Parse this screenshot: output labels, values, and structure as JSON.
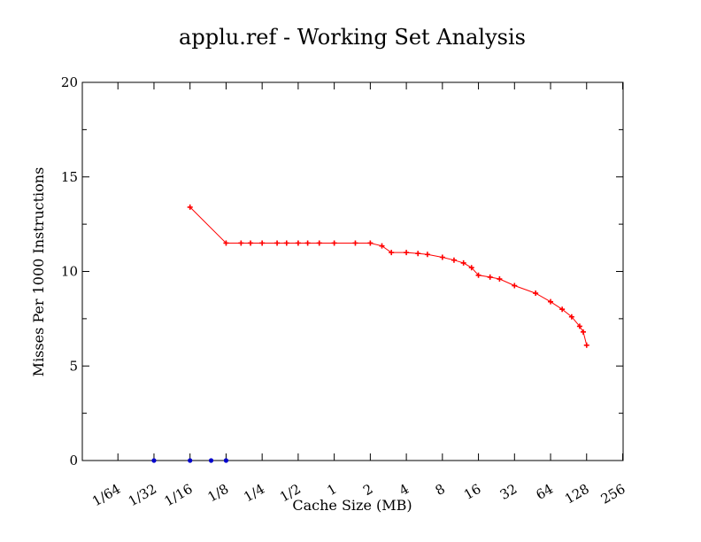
{
  "chart_data": {
    "type": "scatter",
    "title": "applu.ref - Working Set Analysis",
    "xlabel": "Cache Size (MB)",
    "ylabel": "Misses Per 1000 Instructions",
    "x_scale": "log2",
    "xlim": [
      "1/64",
      "256"
    ],
    "ylim": [
      0,
      20
    ],
    "x_ticks": [
      "1/64",
      "1/32",
      "1/16",
      "1/8",
      "1/4",
      "1/2",
      "1",
      "2",
      "4",
      "8",
      "16",
      "32",
      "64",
      "128",
      "256"
    ],
    "y_ticks": [
      "0",
      "5",
      "10",
      "15",
      "20"
    ],
    "grid": false,
    "legend": "none",
    "series": [
      {
        "color": "#ff0000",
        "marker": "plus",
        "connected": true,
        "points": [
          [
            "1/16",
            13.4
          ],
          [
            "1/8",
            11.5
          ],
          [
            "1/6",
            11.5
          ],
          [
            "1/5",
            11.5
          ],
          [
            "1/4",
            11.5
          ],
          [
            "1/3",
            11.5
          ],
          [
            "2/5",
            11.5
          ],
          [
            "1/2",
            11.5
          ],
          [
            "3/5",
            11.5
          ],
          [
            "3/4",
            11.5
          ],
          [
            "1",
            11.5
          ],
          [
            "1.5",
            11.5
          ],
          [
            "2",
            11.5
          ],
          [
            "2.5",
            11.35
          ],
          [
            "3",
            11.0
          ],
          [
            "4",
            11.0
          ],
          [
            "5",
            10.95
          ],
          [
            "6",
            10.9
          ],
          [
            "8",
            10.75
          ],
          [
            "10",
            10.6
          ],
          [
            "12",
            10.45
          ],
          [
            "14",
            10.2
          ],
          [
            "16",
            9.8
          ],
          [
            "20",
            9.7
          ],
          [
            "24",
            9.6
          ],
          [
            "32",
            9.25
          ],
          [
            "48",
            8.85
          ],
          [
            "64",
            8.4
          ],
          [
            "80",
            8.0
          ],
          [
            "96",
            7.6
          ],
          [
            "112",
            7.1
          ],
          [
            "120",
            6.8
          ],
          [
            "128",
            6.1
          ]
        ]
      },
      {
        "color": "#0000cc",
        "marker": "circle",
        "connected": false,
        "points": [
          [
            "1/32",
            0
          ],
          [
            "1/16",
            0
          ],
          [
            "3/32",
            0
          ],
          [
            "1/8",
            0
          ]
        ]
      }
    ]
  }
}
